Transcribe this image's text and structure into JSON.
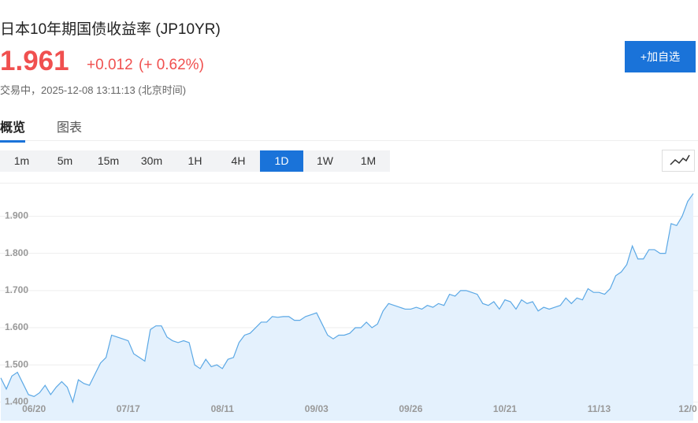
{
  "header": {
    "title": "日本10年期国债收益率 (JP10YR)",
    "price": "1.961",
    "change": "+0.012",
    "change_pct": "(+ 0.62%)",
    "status": "交易中，",
    "time": "2025-12-08 13:11:13",
    "timezone": "(北京时间)",
    "button": "+加自选"
  },
  "tabs": {
    "items": [
      "概览",
      "图表"
    ],
    "active": 0
  },
  "periods": {
    "items": [
      "1m",
      "5m",
      "15m",
      "30m",
      "1H",
      "4H",
      "1D",
      "1W",
      "1M"
    ],
    "active": 6
  },
  "chart_data": {
    "type": "area",
    "color": "#5ba8e5",
    "fill": "#e4f1fd",
    "grid": true,
    "categories": [
      null,
      null,
      null,
      null,
      null,
      null,
      "06/20",
      null,
      null,
      null,
      null,
      null,
      null,
      null,
      null,
      null,
      null,
      null,
      null,
      null,
      null,
      null,
      null,
      "07/17",
      null,
      null,
      null,
      null,
      null,
      null,
      null,
      null,
      null,
      null,
      null,
      null,
      null,
      null,
      null,
      null,
      "08/11",
      null,
      null,
      null,
      null,
      null,
      null,
      null,
      null,
      null,
      null,
      null,
      null,
      null,
      null,
      null,
      null,
      "09/03",
      null,
      null,
      null,
      null,
      null,
      null,
      null,
      null,
      null,
      null,
      null,
      null,
      null,
      null,
      null,
      null,
      "09/26",
      null,
      null,
      null,
      null,
      null,
      null,
      null,
      null,
      null,
      null,
      null,
      null,
      null,
      null,
      null,
      null,
      "10/21",
      null,
      null,
      null,
      null,
      null,
      null,
      null,
      null,
      null,
      null,
      null,
      null,
      null,
      null,
      null,
      null,
      "11/13",
      null,
      null,
      null,
      null,
      null,
      null,
      null,
      null,
      null,
      null,
      null,
      null,
      null,
      null,
      null,
      "12/0",
      null
    ],
    "values": [
      1.465,
      1.435,
      1.47,
      1.48,
      1.45,
      1.42,
      1.415,
      1.425,
      1.445,
      1.42,
      1.44,
      1.455,
      1.44,
      1.4,
      1.46,
      1.45,
      1.445,
      1.475,
      1.505,
      1.52,
      1.58,
      1.575,
      1.57,
      1.565,
      1.53,
      1.52,
      1.51,
      1.595,
      1.605,
      1.605,
      1.575,
      1.565,
      1.56,
      1.565,
      1.56,
      1.5,
      1.49,
      1.515,
      1.495,
      1.5,
      1.49,
      1.515,
      1.52,
      1.56,
      1.58,
      1.585,
      1.6,
      1.615,
      1.615,
      1.63,
      1.628,
      1.63,
      1.63,
      1.62,
      1.62,
      1.63,
      1.635,
      1.64,
      1.61,
      1.58,
      1.57,
      1.58,
      1.58,
      1.585,
      1.6,
      1.6,
      1.615,
      1.6,
      1.61,
      1.645,
      1.665,
      1.66,
      1.655,
      1.65,
      1.65,
      1.655,
      1.65,
      1.66,
      1.655,
      1.665,
      1.66,
      1.69,
      1.685,
      1.7,
      1.7,
      1.695,
      1.69,
      1.665,
      1.66,
      1.67,
      1.65,
      1.675,
      1.67,
      1.65,
      1.675,
      1.665,
      1.67,
      1.645,
      1.655,
      1.65,
      1.655,
      1.66,
      1.68,
      1.665,
      1.68,
      1.675,
      1.705,
      1.695,
      1.695,
      1.69,
      1.705,
      1.74,
      1.75,
      1.77,
      1.82,
      1.785,
      1.785,
      1.81,
      1.81,
      1.8,
      1.8,
      1.88,
      1.875,
      1.9,
      1.94,
      1.961
    ],
    "ylim": [
      1.35,
      1.99
    ],
    "yticks": [
      {
        "value": 1.4,
        "label": "1.400"
      },
      {
        "value": 1.5,
        "label": "1.500"
      },
      {
        "value": 1.6,
        "label": "1.600"
      },
      {
        "value": 1.7,
        "label": "1.700"
      },
      {
        "value": 1.8,
        "label": "1.800"
      },
      {
        "value": 1.9,
        "label": "1.900"
      }
    ]
  }
}
